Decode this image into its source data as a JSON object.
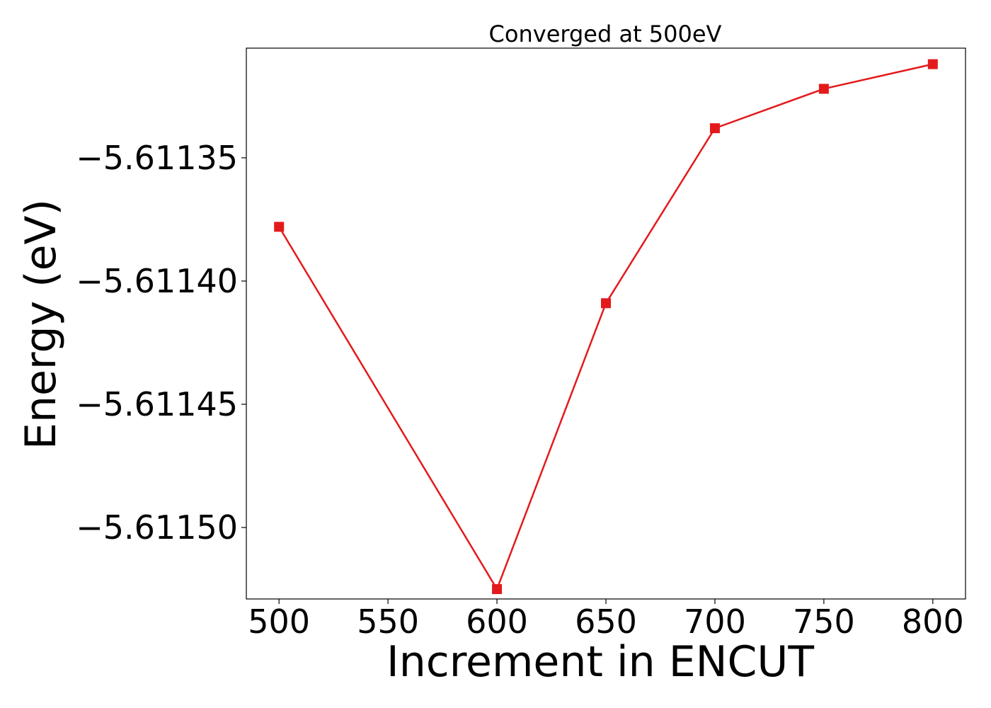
{
  "chart_data": {
    "type": "line",
    "title": "Converged at 500eV",
    "xlabel": "Increment in ENCUT",
    "ylabel": "Energy (eV)",
    "x": [
      500,
      600,
      650,
      700,
      750,
      800
    ],
    "series": [
      {
        "values": [
          -5.611378,
          -5.611525,
          -5.611409,
          -5.611338,
          -5.611322,
          -5.611312
        ],
        "color": "#e31a1c",
        "marker": "square"
      }
    ],
    "xticks": [
      500,
      550,
      600,
      650,
      700,
      750,
      800
    ],
    "xtick_labels": [
      "500",
      "550",
      "600",
      "650",
      "700",
      "750",
      "800"
    ],
    "yticks": [
      -5.6115,
      -5.61145,
      -5.6114,
      -5.61135
    ],
    "ytick_labels": [
      "−5.61150",
      "−5.61145",
      "−5.61140",
      "−5.61135"
    ],
    "xlim": [
      485,
      815
    ],
    "ylim": [
      -5.611529,
      -5.6113055
    ],
    "grid": false,
    "legend": "none"
  }
}
